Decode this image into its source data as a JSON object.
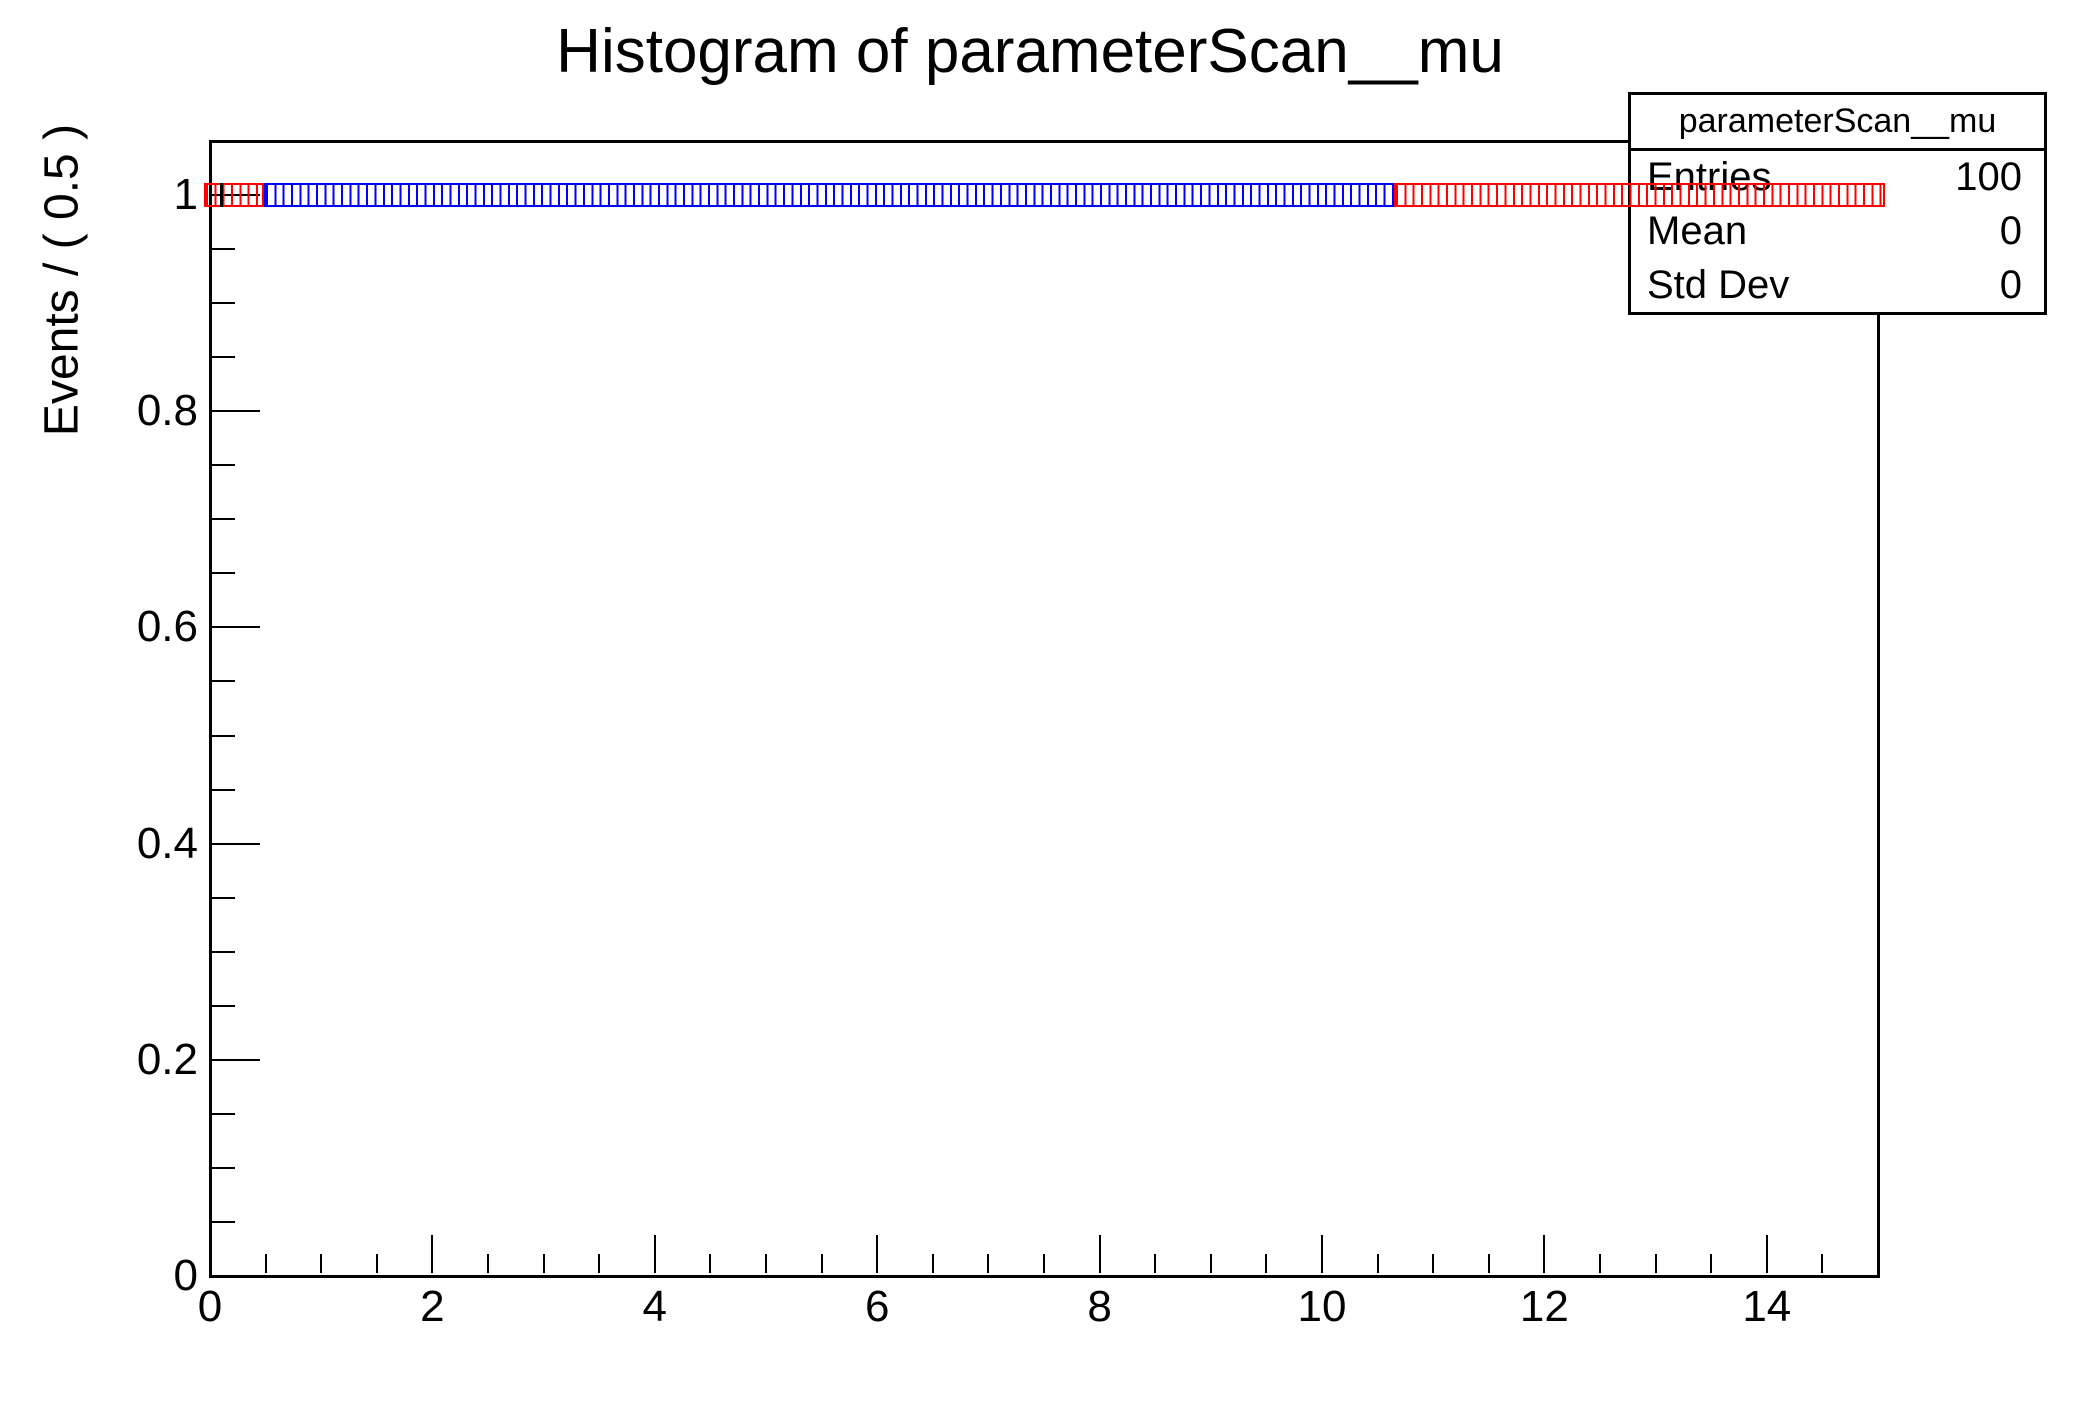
{
  "title": "Histogram of parameterScan__mu",
  "stats_box": {
    "header": "parameterScan__mu",
    "rows": [
      {
        "label": "Entries",
        "value": "100"
      },
      {
        "label": "Mean",
        "value": "0"
      },
      {
        "label": "Std Dev",
        "value": "0"
      }
    ]
  },
  "colors": {
    "red": "#ff0000",
    "blue": "#0000ff",
    "axis": "#000000",
    "background": "#ffffff"
  },
  "chart_data": {
    "type": "scatter",
    "title": "Histogram of parameterScan__mu",
    "xlabel": "",
    "ylabel": "Events / ( 0.5 )",
    "xlim": [
      0,
      15
    ],
    "ylim": [
      0,
      1.05
    ],
    "grid": false,
    "legend": "none",
    "x_major_ticks": [
      {
        "value": 0,
        "label": "0"
      },
      {
        "value": 2,
        "label": "2"
      },
      {
        "value": 4,
        "label": "4"
      },
      {
        "value": 6,
        "label": "6"
      },
      {
        "value": 8,
        "label": "8"
      },
      {
        "value": 10,
        "label": "10"
      },
      {
        "value": 12,
        "label": "12"
      },
      {
        "value": 14,
        "label": "14"
      }
    ],
    "x_minor_step": 0.5,
    "y_major_ticks": [
      {
        "value": 0,
        "label": "0"
      },
      {
        "value": 0.2,
        "label": "0.2"
      },
      {
        "value": 0.4,
        "label": "0.4"
      },
      {
        "value": 0.6,
        "label": "0.6"
      },
      {
        "value": 0.8,
        "label": "0.8"
      },
      {
        "value": 1,
        "label": "1"
      }
    ],
    "y_minor_step": 0.05,
    "n_scan_points": 100,
    "scan_bin_width": 0.15,
    "scan_value": 1,
    "marker_style": "open-square",
    "segments": [
      {
        "name": "red-left",
        "color_key": "red",
        "x_start": -0.05,
        "x_end": 0.483,
        "n_points": 3
      },
      {
        "name": "blue-middle",
        "color_key": "blue",
        "x_start": 0.483,
        "x_end": 10.65,
        "n_points": 68
      },
      {
        "name": "red-right",
        "color_key": "red",
        "x_start": 10.65,
        "x_end": 15.06,
        "n_points": 29
      }
    ],
    "black_marker": {
      "x": 0.1,
      "y": 1
    }
  }
}
